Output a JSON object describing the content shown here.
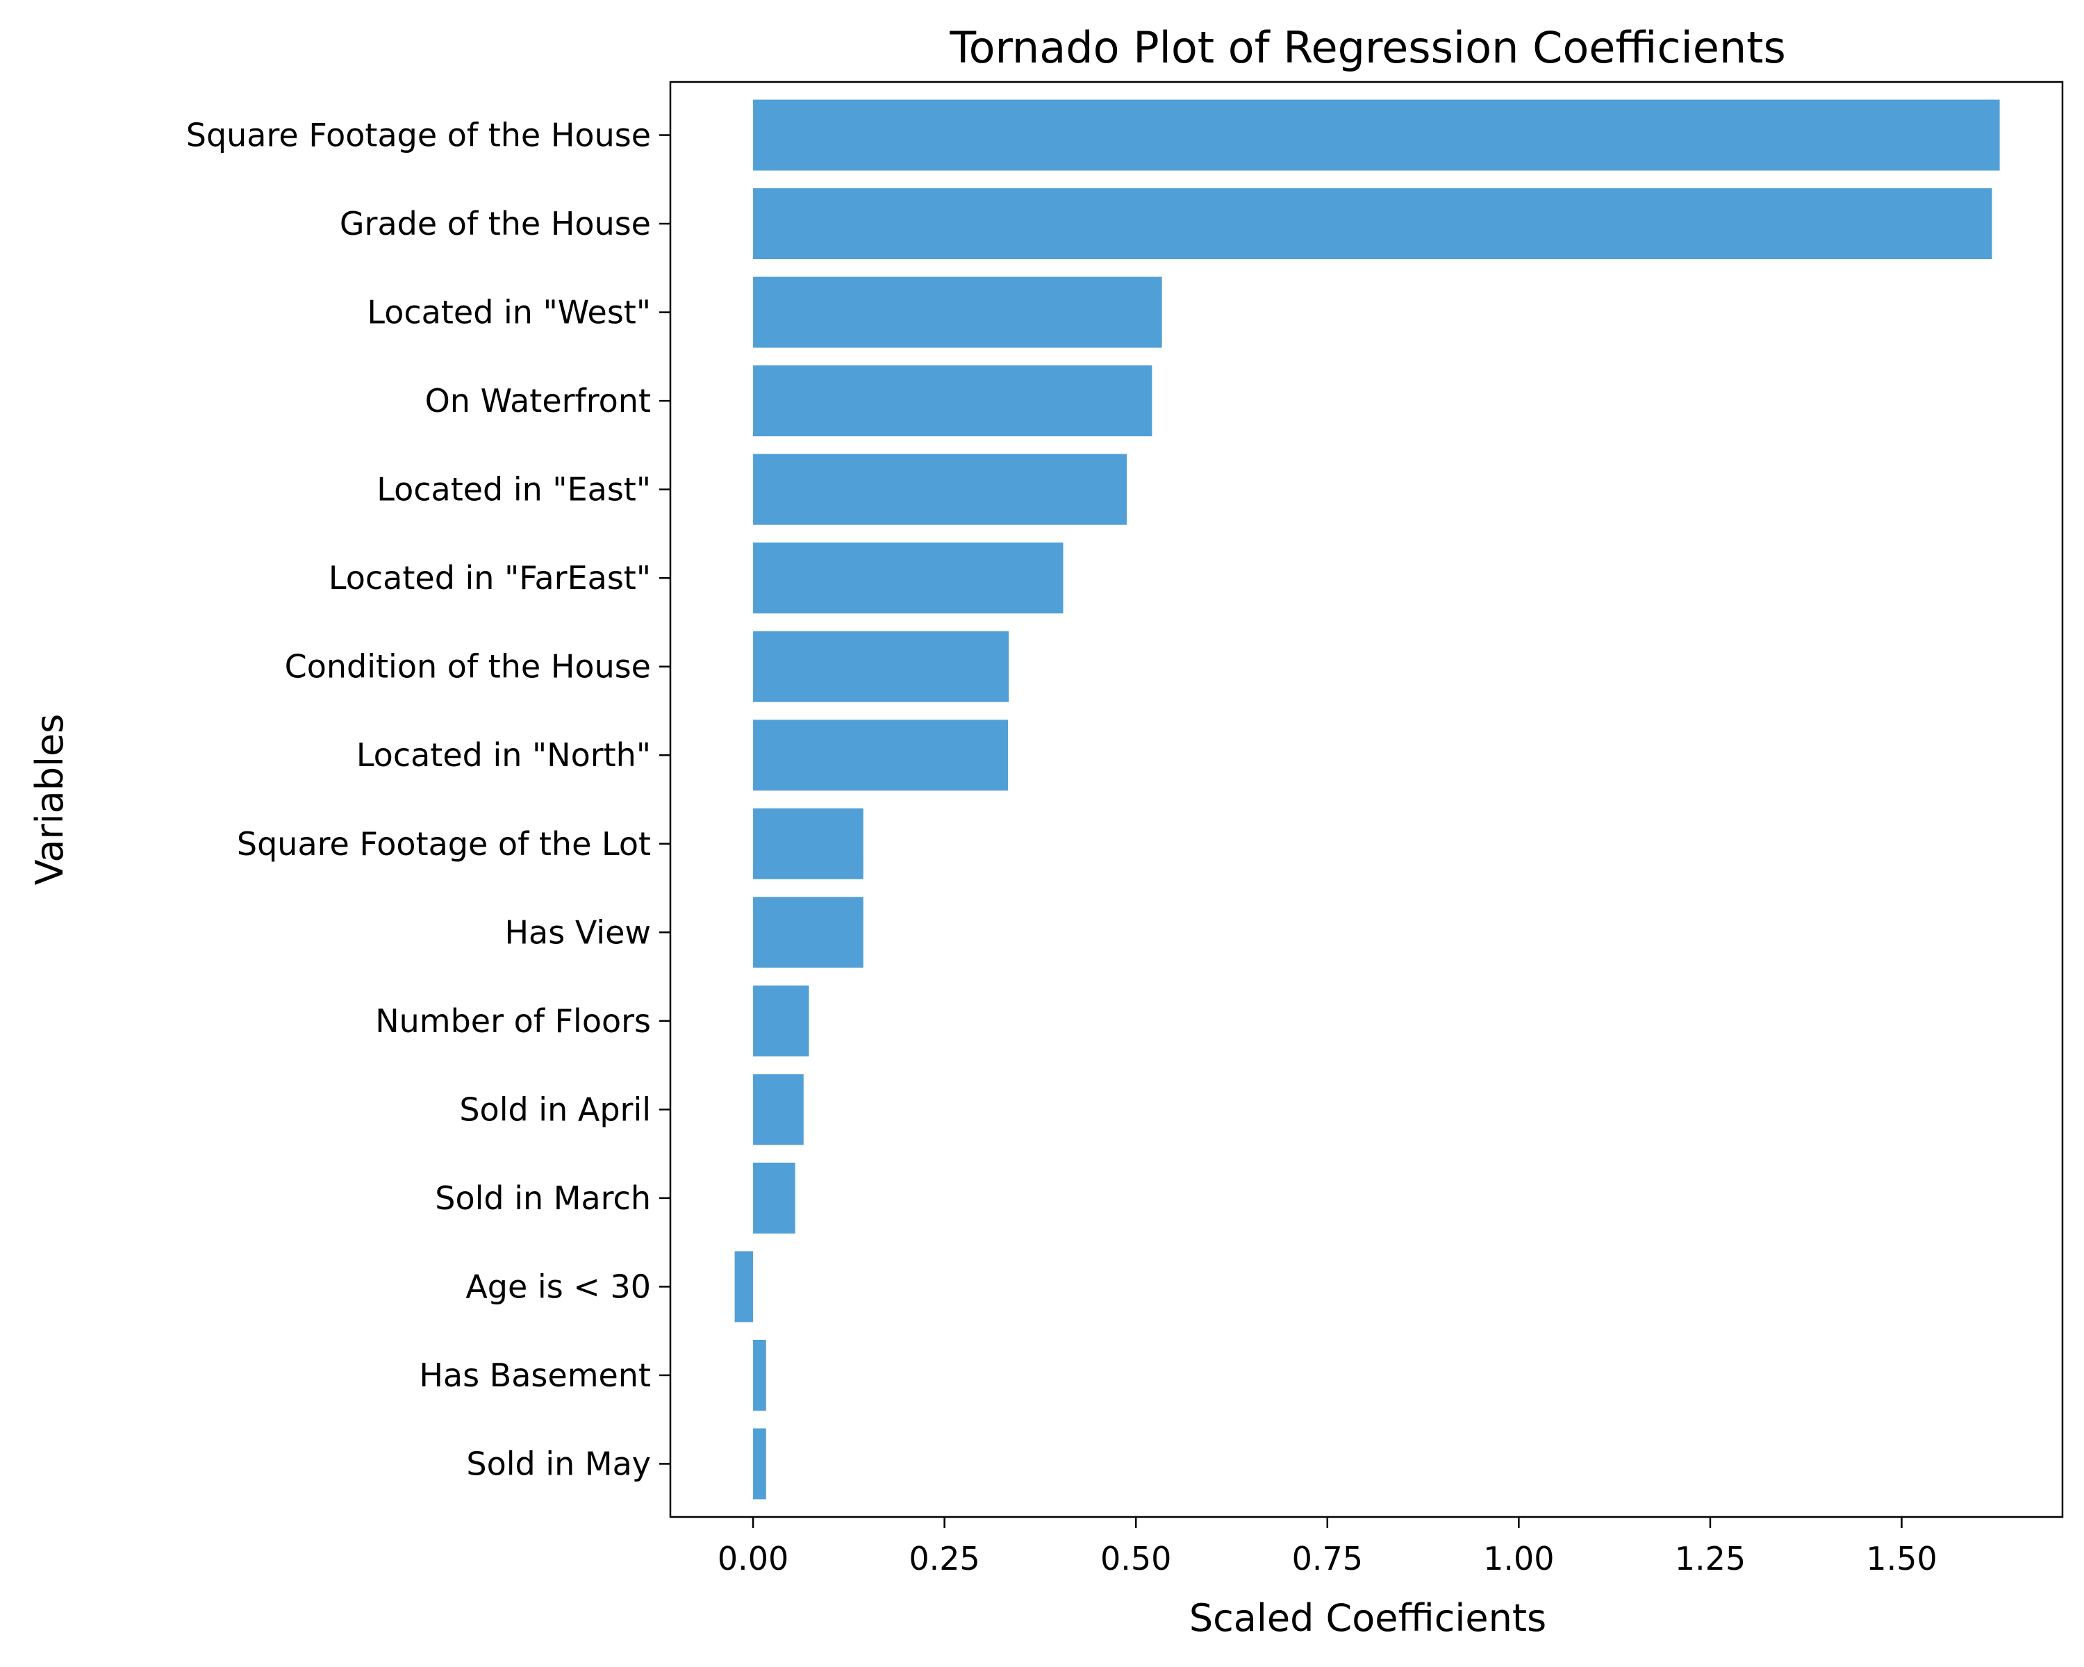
{
  "chart_data": {
    "type": "bar",
    "orientation": "horizontal",
    "title": "Tornado Plot of Regression Coefficients",
    "xlabel": "Scaled Coefficients",
    "ylabel": "Variables",
    "categories": [
      "Square Footage of the House",
      "Grade of the House",
      "Located in \"West\"",
      "On Waterfront",
      "Located in \"East\"",
      "Located in \"FarEast\"",
      "Condition of the House",
      "Located in \"North\"",
      "Square Footage of the Lot",
      "Has View",
      "Number of Floors",
      "Sold in April",
      "Sold in March",
      "Age is < 30",
      "Has Basement",
      "Sold in May"
    ],
    "values": [
      1.628,
      1.618,
      0.534,
      0.521,
      0.488,
      0.405,
      0.334,
      0.333,
      0.144,
      0.144,
      0.073,
      0.066,
      0.055,
      -0.024,
      0.017,
      0.017
    ],
    "xlim": [
      -0.108,
      1.71
    ],
    "xticks": [
      0.0,
      0.25,
      0.5,
      0.75,
      1.0,
      1.25,
      1.5
    ],
    "xtick_labels": [
      "0.00",
      "0.25",
      "0.50",
      "0.75",
      "1.00",
      "1.25",
      "1.50"
    ],
    "bar_color": "#519fd7",
    "grid": false,
    "legend": "none"
  }
}
